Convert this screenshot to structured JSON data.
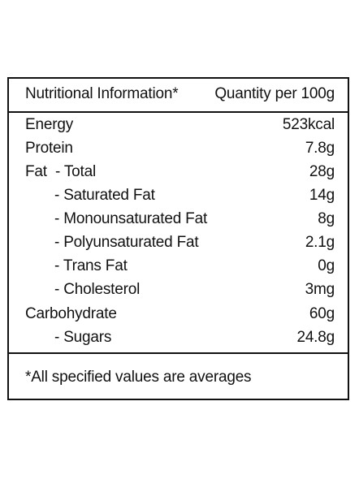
{
  "header": {
    "left": "Nutritional Information*",
    "right": "Quantity per 100g"
  },
  "rows": [
    {
      "label": "Energy",
      "value": "523kcal"
    },
    {
      "label": "Protein",
      "value": "7.8g"
    },
    {
      "label": "Fat  - Total",
      "value": "28g"
    },
    {
      "label": "- Saturated Fat",
      "value": "14g"
    },
    {
      "label": "- Monounsaturated Fat",
      "value": "8g"
    },
    {
      "label": "- Polyunsaturated Fat",
      "value": "2.1g"
    },
    {
      "label": "- Trans Fat",
      "value": "0g"
    },
    {
      "label": "- Cholesterol",
      "value": "3mg"
    },
    {
      "label": "Carbohydrate",
      "value": "60g"
    },
    {
      "label": "- Sugars",
      "value": "24.8g"
    }
  ],
  "footnote": "*All specified values are averages"
}
